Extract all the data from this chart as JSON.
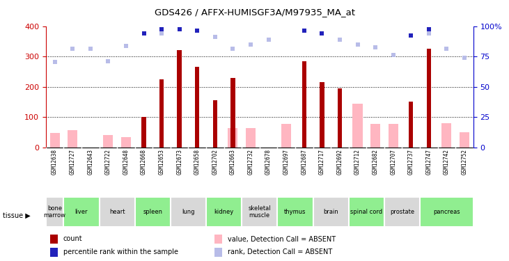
{
  "title": "GDS426 / AFFX-HUMISGF3A/M97935_MA_at",
  "samples": [
    "GSM12638",
    "GSM12727",
    "GSM12643",
    "GSM12722",
    "GSM12648",
    "GSM12668",
    "GSM12653",
    "GSM12673",
    "GSM12658",
    "GSM12702",
    "GSM12663",
    "GSM12732",
    "GSM12678",
    "GSM12697",
    "GSM12687",
    "GSM12717",
    "GSM12692",
    "GSM12712",
    "GSM12682",
    "GSM12707",
    "GSM12737",
    "GSM12747",
    "GSM12742",
    "GSM12752"
  ],
  "tissues": [
    {
      "name": "bone\nmarrow",
      "start": 0,
      "end": 1,
      "color": "#d8d8d8"
    },
    {
      "name": "liver",
      "start": 1,
      "end": 3,
      "color": "#90ee90"
    },
    {
      "name": "heart",
      "start": 3,
      "end": 5,
      "color": "#d8d8d8"
    },
    {
      "name": "spleen",
      "start": 5,
      "end": 7,
      "color": "#90ee90"
    },
    {
      "name": "lung",
      "start": 7,
      "end": 9,
      "color": "#d8d8d8"
    },
    {
      "name": "kidney",
      "start": 9,
      "end": 11,
      "color": "#90ee90"
    },
    {
      "name": "skeletal\nmuscle",
      "start": 11,
      "end": 13,
      "color": "#d8d8d8"
    },
    {
      "name": "thymus",
      "start": 13,
      "end": 15,
      "color": "#90ee90"
    },
    {
      "name": "brain",
      "start": 15,
      "end": 17,
      "color": "#d8d8d8"
    },
    {
      "name": "spinal cord",
      "start": 17,
      "end": 19,
      "color": "#90ee90"
    },
    {
      "name": "prostate",
      "start": 19,
      "end": 21,
      "color": "#d8d8d8"
    },
    {
      "name": "pancreas",
      "start": 21,
      "end": 24,
      "color": "#90ee90"
    }
  ],
  "count_values": [
    null,
    null,
    null,
    null,
    null,
    100,
    225,
    320,
    265,
    155,
    230,
    null,
    null,
    null,
    285,
    215,
    195,
    null,
    null,
    null,
    150,
    325,
    null,
    null
  ],
  "absent_value": [
    48,
    58,
    null,
    42,
    33,
    null,
    null,
    null,
    null,
    null,
    65,
    65,
    null,
    78,
    null,
    null,
    null,
    145,
    78,
    78,
    null,
    null,
    80,
    50
  ],
  "absent_rank": [
    283,
    325,
    325,
    285,
    335,
    null,
    375,
    390,
    385,
    365,
    325,
    340,
    355,
    null,
    385,
    375,
    355,
    340,
    330,
    305,
    370,
    375,
    325,
    295
  ],
  "present_rank": [
    null,
    null,
    null,
    null,
    null,
    375,
    390,
    390,
    385,
    null,
    null,
    null,
    null,
    null,
    385,
    375,
    null,
    null,
    null,
    null,
    370,
    390,
    null,
    null
  ],
  "ylim_left": [
    0,
    400
  ],
  "yticks_left": [
    0,
    100,
    200,
    300,
    400
  ],
  "yticks_right": [
    0,
    25,
    50,
    75,
    100
  ],
  "ytick_labels_right": [
    "0",
    "25",
    "50",
    "75",
    "100%"
  ],
  "bar_color": "#aa0000",
  "absent_bar_color": "#ffb6c1",
  "absent_rank_color": "#b8bce8",
  "present_rank_color": "#2222bb",
  "legend_items": [
    {
      "color": "#aa0000",
      "label": "count"
    },
    {
      "color": "#2222bb",
      "label": "percentile rank within the sample"
    },
    {
      "color": "#ffb6c1",
      "label": "value, Detection Call = ABSENT"
    },
    {
      "color": "#b8bce8",
      "label": "rank, Detection Call = ABSENT"
    }
  ],
  "sample_bg_color": "#d8d8d8",
  "left_axis_color": "#cc0000",
  "right_axis_color": "#0000cc"
}
